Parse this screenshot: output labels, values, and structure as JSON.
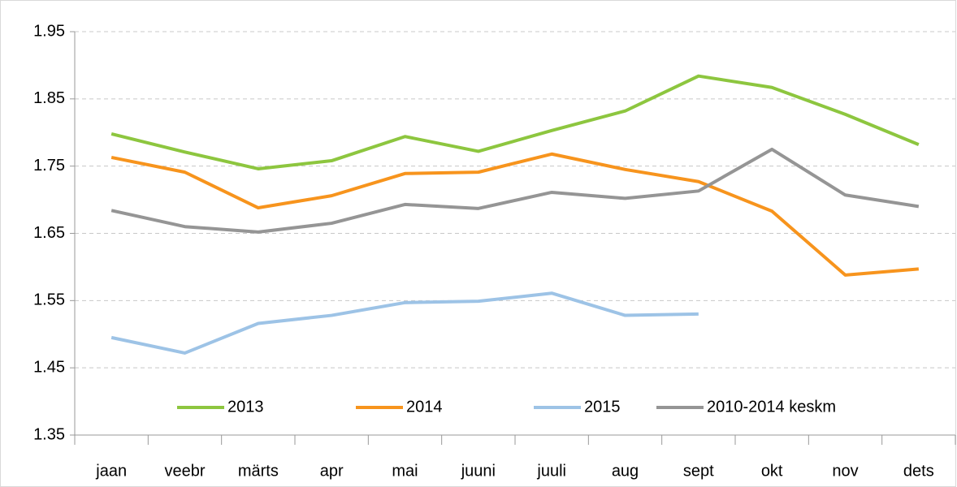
{
  "chart_data": {
    "type": "line",
    "categories": [
      "jaan",
      "veebr",
      "märts",
      "apr",
      "mai",
      "juuni",
      "juuli",
      "aug",
      "sept",
      "okt",
      "nov",
      "dets"
    ],
    "series": [
      {
        "name": "2013",
        "color": "#8dc63f",
        "values": [
          1.798,
          1.771,
          1.746,
          1.758,
          1.794,
          1.772,
          1.803,
          1.832,
          1.884,
          1.867,
          1.827,
          1.782
        ]
      },
      {
        "name": "2014",
        "color": "#f7941d",
        "values": [
          1.763,
          1.741,
          1.688,
          1.706,
          1.739,
          1.741,
          1.768,
          1.745,
          1.727,
          1.683,
          1.588,
          1.597
        ]
      },
      {
        "name": "2015",
        "color": "#9dc3e6",
        "values": [
          1.495,
          1.472,
          1.516,
          1.528,
          1.547,
          1.549,
          1.561,
          1.528,
          1.53,
          null,
          null,
          null
        ]
      },
      {
        "name": "2010-2014 keskm",
        "color": "#959595",
        "values": [
          1.684,
          1.66,
          1.652,
          1.665,
          1.693,
          1.687,
          1.711,
          1.702,
          1.713,
          1.775,
          1.707,
          1.69
        ]
      }
    ],
    "ylim": [
      1.35,
      1.95
    ],
    "yticks": [
      1.35,
      1.45,
      1.55,
      1.65,
      1.75,
      1.85,
      1.95
    ],
    "grid": true,
    "legend": "bottom"
  }
}
